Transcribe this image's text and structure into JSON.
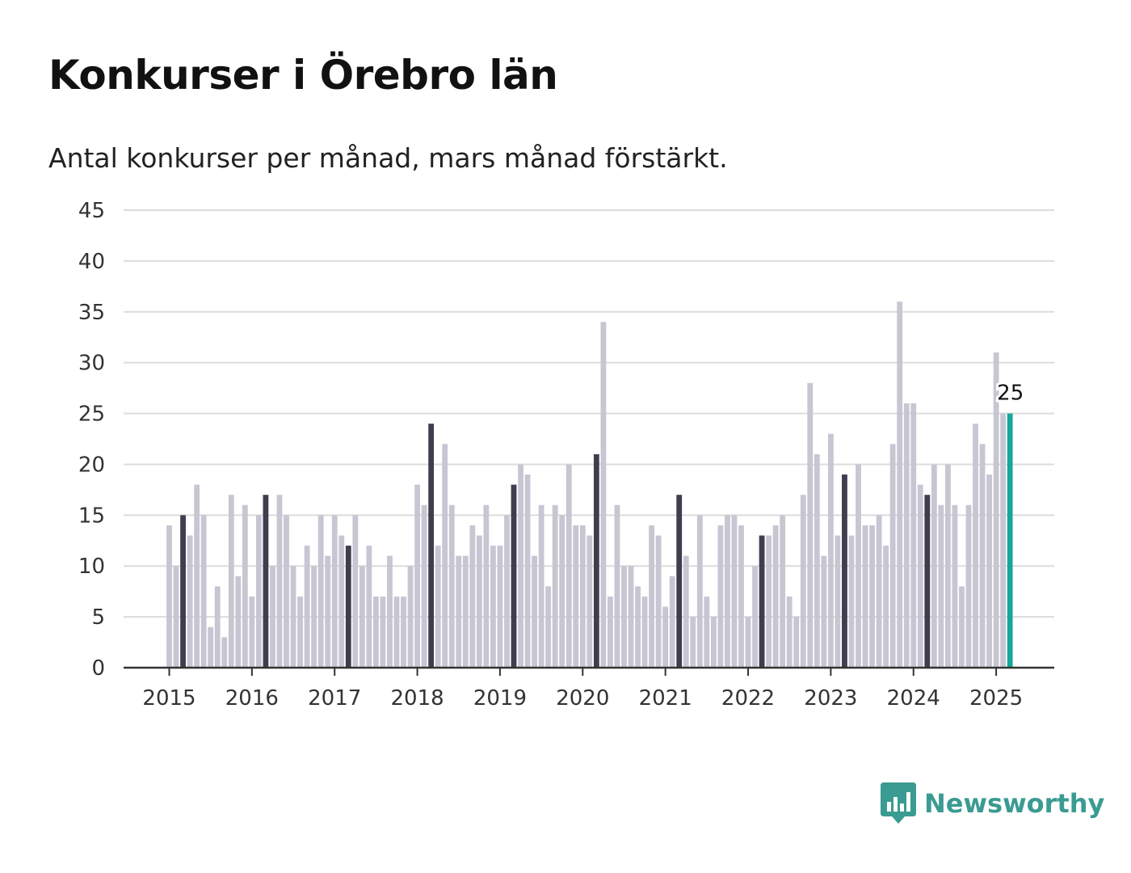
{
  "title": "Konkurser i Örebro län",
  "subtitle": "Antal konkurser per månad, mars månad förstärkt.",
  "brand": {
    "name": "Newsworthy",
    "icon": "bar-chart-bubble-icon"
  },
  "colors": {
    "bar": "#c7c6d2",
    "highlight": "#3f3e4e",
    "latest": "#14a89a",
    "grid": "#dcdcdc",
    "axis": "#333333",
    "brand": "#3a9b92"
  },
  "chart_data": {
    "type": "bar",
    "title": "Konkurser i Örebro län",
    "subtitle": "Antal konkurser per månad, mars månad förstärkt.",
    "ylim": [
      0,
      45
    ],
    "yticks": [
      0,
      5,
      10,
      15,
      20,
      25,
      30,
      35,
      40,
      45
    ],
    "xticks": [
      "2015",
      "2016",
      "2017",
      "2018",
      "2019",
      "2020",
      "2021",
      "2022",
      "2023",
      "2024",
      "2025"
    ],
    "start": "2015-01",
    "highlight_month": "mars",
    "grid": true,
    "series": [
      {
        "values": [
          14,
          10,
          15,
          13,
          18,
          15,
          4,
          8,
          3,
          17,
          9,
          16,
          7,
          15,
          17,
          10,
          17,
          15,
          10,
          7,
          12,
          10,
          15,
          11,
          15,
          13,
          12,
          15,
          10,
          12,
          7,
          7,
          11,
          7,
          7,
          10,
          18,
          16,
          24,
          12,
          22,
          16,
          11,
          11,
          14,
          13,
          16,
          12,
          12,
          15,
          18,
          20,
          19,
          11,
          16,
          8,
          16,
          15,
          20,
          14,
          14,
          13,
          21,
          34,
          7,
          16,
          10,
          10,
          8,
          7,
          14,
          13,
          6,
          9,
          17,
          11,
          5,
          15,
          7,
          5,
          14,
          15,
          15,
          14,
          5,
          10,
          13,
          13,
          14,
          15,
          7,
          5,
          17,
          28,
          21,
          11,
          23,
          13,
          19,
          13,
          20,
          14,
          14,
          15,
          12,
          22,
          36,
          26,
          26,
          18,
          17,
          20,
          16,
          20,
          16,
          8,
          16,
          24,
          22,
          19,
          31,
          25,
          25
        ]
      }
    ],
    "annotation": {
      "value": "25",
      "month": "2025-03"
    }
  }
}
